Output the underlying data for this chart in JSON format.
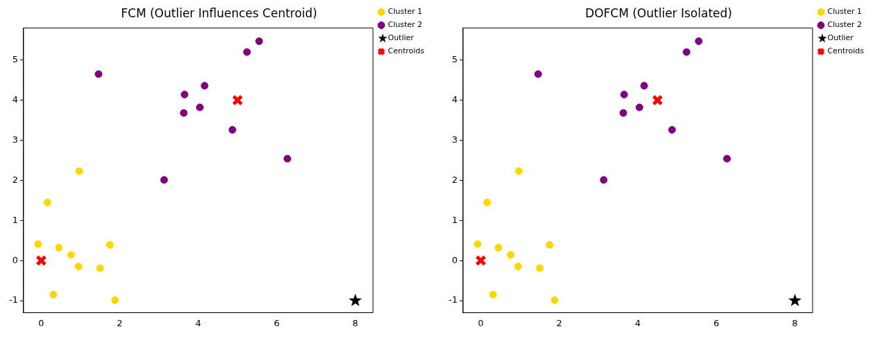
{
  "chart_data": [
    {
      "type": "scatter",
      "title": "FCM (Outlier Influences Centroid)",
      "xlim": [
        -0.45,
        8.45
      ],
      "ylim": [
        -1.3,
        5.8
      ],
      "xticks": [
        0,
        2,
        4,
        6,
        8
      ],
      "yticks": [
        -1,
        0,
        1,
        2,
        3,
        4,
        5
      ],
      "grid": false,
      "legend": "top right",
      "series": [
        {
          "name": "Cluster 1",
          "color": "#ffd700",
          "marker": "circle",
          "x": [
            -0.08,
            0.16,
            0.45,
            0.76,
            0.97,
            0.95,
            1.5,
            1.75,
            0.31,
            1.88
          ],
          "values": [
            0.41,
            1.45,
            0.32,
            0.14,
            2.23,
            -0.15,
            -0.19,
            0.39,
            -0.85,
            -0.99
          ]
        },
        {
          "name": "Cluster 2",
          "color": "#800080",
          "marker": "circle",
          "x": [
            1.46,
            3.65,
            3.63,
            4.04,
            4.16,
            4.87,
            5.24,
            5.55,
            6.27,
            3.13
          ],
          "values": [
            4.65,
            4.14,
            3.68,
            3.82,
            4.36,
            3.26,
            5.2,
            5.47,
            2.54,
            2.01
          ]
        },
        {
          "name": "Outlier",
          "color": "#000000",
          "marker": "star",
          "x": [
            8
          ],
          "values": [
            -1
          ]
        },
        {
          "name": "Centroids",
          "color": "#ff0000",
          "marker": "cross",
          "x": [
            0,
            5
          ],
          "values": [
            0,
            4
          ]
        }
      ]
    },
    {
      "type": "scatter",
      "title": "DOFCM (Outlier Isolated)",
      "xlim": [
        -0.45,
        8.45
      ],
      "ylim": [
        -1.3,
        5.8
      ],
      "xticks": [
        0,
        2,
        4,
        6,
        8
      ],
      "yticks": [
        -1,
        0,
        1,
        2,
        3,
        4,
        5
      ],
      "grid": false,
      "legend": "top right",
      "series": [
        {
          "name": "Cluster 1",
          "color": "#ffd700",
          "marker": "circle",
          "x": [
            -0.08,
            0.16,
            0.45,
            0.76,
            0.97,
            0.95,
            1.5,
            1.75,
            0.31,
            1.88
          ],
          "values": [
            0.41,
            1.45,
            0.32,
            0.14,
            2.23,
            -0.15,
            -0.19,
            0.39,
            -0.85,
            -0.99
          ]
        },
        {
          "name": "Cluster 2",
          "color": "#800080",
          "marker": "circle",
          "x": [
            1.46,
            3.65,
            3.63,
            4.04,
            4.16,
            4.87,
            5.24,
            5.55,
            6.27,
            3.13
          ],
          "values": [
            4.65,
            4.14,
            3.68,
            3.82,
            4.36,
            3.26,
            5.2,
            5.47,
            2.54,
            2.01
          ]
        },
        {
          "name": "Outlier",
          "color": "#000000",
          "marker": "star",
          "x": [
            8
          ],
          "values": [
            -1
          ]
        },
        {
          "name": "Centroids",
          "color": "#ff0000",
          "marker": "cross",
          "x": [
            0,
            4.5
          ],
          "values": [
            0,
            4
          ]
        }
      ]
    }
  ]
}
